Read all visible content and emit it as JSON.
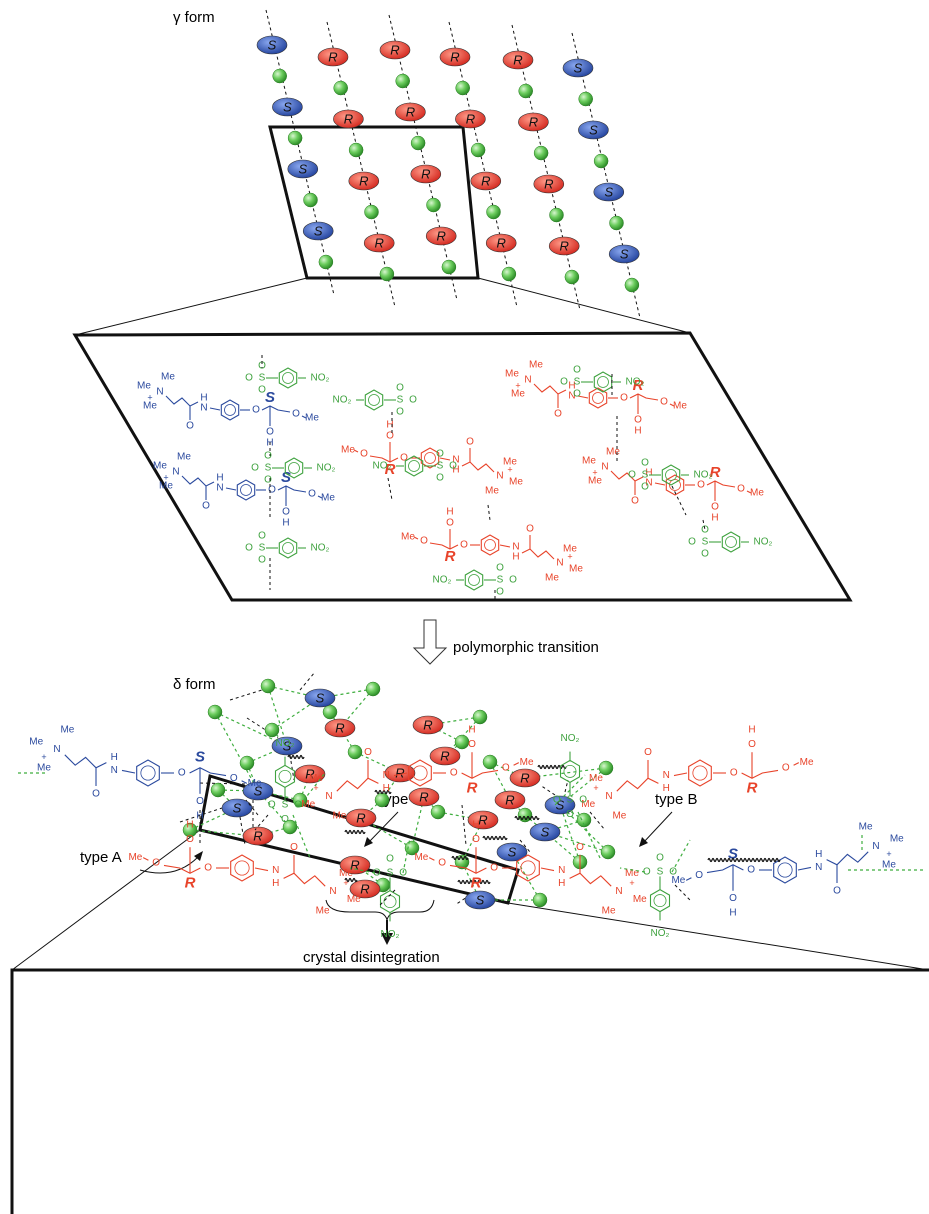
{
  "gamma_form": {
    "label": "γ form",
    "molecules": [
      "S",
      "S",
      "S",
      "S",
      "R",
      "R",
      "R",
      "R",
      "R",
      "R",
      "R",
      "R",
      "R",
      "R",
      "R",
      "R",
      "R",
      "R",
      "R",
      "R",
      "S",
      "S",
      "S",
      "S"
    ]
  },
  "gamma_detail": {
    "cations": [
      {
        "atoms": [
          "Me",
          "Me",
          "N",
          "+",
          "Me",
          "H",
          "N",
          "O",
          "O",
          "S",
          "O",
          "Me",
          "O",
          "H"
        ]
      },
      {
        "atoms": [
          "Me",
          "Me",
          "N",
          "+",
          "Me",
          "H",
          "N",
          "O",
          "O",
          "R",
          "O",
          "Me",
          "O",
          "H"
        ]
      },
      {
        "atoms": [
          "Me",
          "Me",
          "N",
          "+",
          "Me",
          "H",
          "N",
          "O",
          "O",
          "R",
          "O",
          "Me",
          "O",
          "H"
        ]
      },
      {
        "atoms": [
          "Me",
          "Me",
          "N",
          "+",
          "Me",
          "H",
          "N",
          "O",
          "O",
          "S",
          "O",
          "Me",
          "O",
          "H"
        ]
      },
      {
        "atoms": [
          "Me",
          "Me",
          "N",
          "+",
          "Me",
          "H",
          "N",
          "O",
          "O",
          "R",
          "O",
          "Me",
          "O",
          "H"
        ]
      },
      {
        "atoms": [
          "Me",
          "Me",
          "N",
          "+",
          "Me",
          "H",
          "N",
          "O",
          "O",
          "R",
          "O",
          "Me",
          "O",
          "H"
        ]
      }
    ],
    "anions": [
      {
        "atoms": [
          "O",
          "S",
          "O",
          "O"
        ],
        "group": "NO₂"
      },
      {
        "atoms": [
          "O",
          "S",
          "O",
          "O"
        ],
        "group": "NO₂"
      },
      {
        "atoms": [
          "O",
          "S",
          "O",
          "O"
        ],
        "group": "NO₂"
      },
      {
        "atoms": [
          "O",
          "S",
          "O",
          "O"
        ],
        "group": "NO₂"
      },
      {
        "atoms": [
          "O",
          "S",
          "O",
          "O"
        ],
        "group": "NO₂"
      },
      {
        "atoms": [
          "O",
          "S",
          "O",
          "O"
        ],
        "group": "NO₂"
      },
      {
        "atoms": [
          "O",
          "S",
          "O",
          "O"
        ],
        "group": "NO₂"
      },
      {
        "atoms": [
          "O",
          "S",
          "O",
          "O"
        ],
        "group": "NO₂"
      },
      {
        "atoms": [
          "O",
          "S",
          "O",
          "O"
        ],
        "group": "NO₂"
      }
    ]
  },
  "transition": "polymorphic transition",
  "delta_form": {
    "label": "δ form",
    "molecules": [
      "S",
      "R",
      "R",
      "S",
      "R",
      "R",
      "R",
      "R",
      "S",
      "R",
      "R",
      "S",
      "S",
      "R",
      "R",
      "S",
      "R",
      "R",
      "S",
      "R",
      "S"
    ]
  },
  "disintegration": "crystal disintegration",
  "delta_detail": {
    "type_a": "type A",
    "type_b": [
      "type B",
      "type B"
    ],
    "cations": [
      {
        "atoms": [
          "Me",
          "Me",
          "N",
          "+",
          "Me",
          "H",
          "N",
          "O",
          "O",
          "S",
          "O",
          "Me",
          "O",
          "H"
        ]
      },
      {
        "atoms": [
          "Me",
          "Me",
          "N",
          "+",
          "Me",
          "H",
          "N",
          "O",
          "O",
          "R",
          "O",
          "Me",
          "O",
          "H"
        ]
      },
      {
        "atoms": [
          "Me",
          "Me",
          "N",
          "+",
          "Me",
          "H",
          "N",
          "O",
          "O",
          "R",
          "O",
          "Me",
          "O",
          "H"
        ]
      },
      {
        "atoms": [
          "Me",
          "Me",
          "N",
          "+",
          "Me",
          "H",
          "N",
          "O",
          "O",
          "R",
          "O",
          "Me",
          "O",
          "H"
        ]
      },
      {
        "atoms": [
          "Me",
          "Me",
          "N",
          "+",
          "Me",
          "H",
          "N",
          "O",
          "O",
          "R",
          "O",
          "Me",
          "O",
          "H"
        ]
      },
      {
        "atoms": [
          "Me",
          "Me",
          "N",
          "+",
          "Me",
          "H",
          "N",
          "O",
          "O",
          "S",
          "O",
          "Me",
          "O",
          "H"
        ]
      }
    ],
    "anions": [
      {
        "atoms": [
          "O",
          "S",
          "O",
          "O"
        ],
        "group": "NO₂"
      },
      {
        "atoms": [
          "O",
          "S",
          "O",
          "O"
        ],
        "group": "NO₂"
      },
      {
        "atoms": [
          "O",
          "S",
          "O",
          "O"
        ],
        "group": "NO₂"
      },
      {
        "atoms": [
          "O",
          "S",
          "O",
          "O"
        ],
        "group": "NO₂"
      }
    ]
  }
}
